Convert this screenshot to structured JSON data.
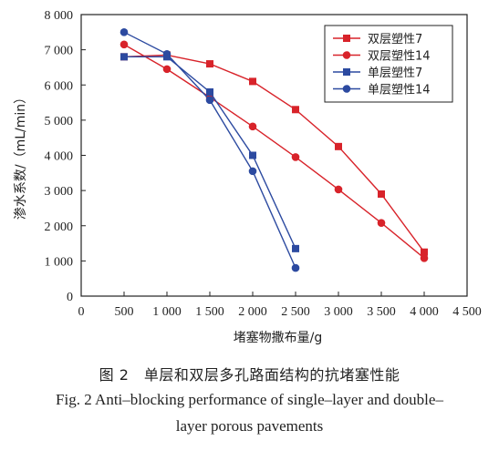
{
  "chart_data": {
    "type": "line",
    "xlabel": "堵塞物撒布量/g",
    "ylabel": "渗水系数/（mL/min）",
    "xlim": [
      0,
      4500
    ],
    "ylim": [
      0,
      8000
    ],
    "x_ticks": [
      0,
      500,
      1000,
      1500,
      2000,
      2500,
      3000,
      3500,
      4000,
      4500
    ],
    "x_tick_labels": [
      "0",
      "500",
      "1 000",
      "1 500",
      "2 000",
      "2 500",
      "3 000",
      "3 500",
      "4 000",
      "4 500"
    ],
    "y_ticks": [
      0,
      1000,
      2000,
      3000,
      4000,
      5000,
      6000,
      7000,
      8000
    ],
    "y_tick_labels": [
      "0",
      "1 000",
      "2 000",
      "3 000",
      "4 000",
      "5 000",
      "6 000",
      "7 000",
      "8 000"
    ],
    "grid": false,
    "legend_position": "top-right",
    "series": [
      {
        "name": "双层塑性7",
        "color": "#d8232a",
        "marker": "square",
        "x": [
          500,
          1000,
          1500,
          2000,
          2500,
          3000,
          3500,
          4000
        ],
        "y": [
          6800,
          6850,
          6600,
          6100,
          5300,
          4250,
          2900,
          1250
        ]
      },
      {
        "name": "双层塑性14",
        "color": "#d8232a",
        "marker": "circle",
        "x": [
          500,
          1000,
          1500,
          2000,
          2500,
          3000,
          3500,
          4000
        ],
        "y": [
          7150,
          6450,
          5650,
          4820,
          3950,
          3030,
          2080,
          1080
        ]
      },
      {
        "name": "单层塑性7",
        "color": "#2c4aa0",
        "marker": "square",
        "x": [
          500,
          1000,
          1500,
          2000,
          2500
        ],
        "y": [
          6800,
          6800,
          5800,
          4000,
          1350
        ]
      },
      {
        "name": "单层塑性14",
        "color": "#2c4aa0",
        "marker": "circle",
        "x": [
          500,
          1000,
          1500,
          2000,
          2500
        ],
        "y": [
          7500,
          6880,
          5570,
          3550,
          800
        ]
      }
    ]
  },
  "caption": {
    "zh": "图 2　单层和双层多孔路面结构的抗堵塞性能",
    "en_line1": "Fig. 2 Anti–blocking performance of single–layer and double–",
    "en_line2": "layer porous pavements"
  }
}
